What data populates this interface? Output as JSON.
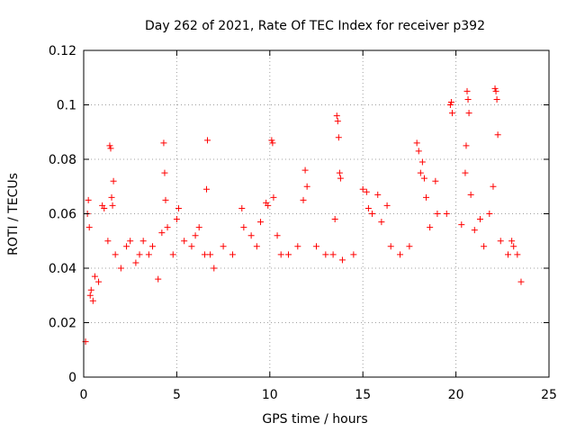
{
  "chart_data": {
    "type": "scatter",
    "title": "Day 262 of 2021, Rate Of TEC Index for receiver p392",
    "xlabel": "GPS time / hours",
    "ylabel": "ROTI / TECUs",
    "xlim": [
      0,
      25
    ],
    "ylim": [
      0,
      0.12
    ],
    "xticks": [
      "0",
      "5",
      "10",
      "15",
      "20",
      "25"
    ],
    "yticks": [
      "0",
      "0.02",
      "0.04",
      "0.06",
      "0.08",
      "0.1",
      "0.12"
    ],
    "grid": true,
    "marker": "plus",
    "color": "#ff0000",
    "series": [
      {
        "values": [
          [
            0.1,
            0.013
          ],
          [
            0.2,
            0.06
          ],
          [
            0.25,
            0.065
          ],
          [
            0.3,
            0.055
          ],
          [
            0.35,
            0.03
          ],
          [
            0.4,
            0.032
          ],
          [
            0.5,
            0.028
          ],
          [
            0.6,
            0.037
          ],
          [
            0.8,
            0.035
          ],
          [
            1.0,
            0.063
          ],
          [
            1.1,
            0.062
          ],
          [
            1.3,
            0.05
          ],
          [
            1.4,
            0.085
          ],
          [
            1.45,
            0.084
          ],
          [
            1.5,
            0.066
          ],
          [
            1.55,
            0.063
          ],
          [
            1.6,
            0.072
          ],
          [
            1.7,
            0.045
          ],
          [
            2.0,
            0.04
          ],
          [
            2.3,
            0.048
          ],
          [
            2.5,
            0.05
          ],
          [
            2.8,
            0.042
          ],
          [
            3.0,
            0.045
          ],
          [
            3.2,
            0.05
          ],
          [
            3.5,
            0.045
          ],
          [
            3.7,
            0.048
          ],
          [
            4.0,
            0.036
          ],
          [
            4.2,
            0.053
          ],
          [
            4.3,
            0.086
          ],
          [
            4.35,
            0.075
          ],
          [
            4.4,
            0.065
          ],
          [
            4.5,
            0.055
          ],
          [
            4.8,
            0.045
          ],
          [
            5.0,
            0.058
          ],
          [
            5.1,
            0.062
          ],
          [
            5.4,
            0.05
          ],
          [
            5.8,
            0.048
          ],
          [
            6.0,
            0.052
          ],
          [
            6.2,
            0.055
          ],
          [
            6.5,
            0.045
          ],
          [
            6.6,
            0.069
          ],
          [
            6.65,
            0.087
          ],
          [
            6.8,
            0.045
          ],
          [
            7.0,
            0.04
          ],
          [
            7.5,
            0.048
          ],
          [
            8.0,
            0.045
          ],
          [
            8.5,
            0.062
          ],
          [
            8.6,
            0.055
          ],
          [
            9.0,
            0.052
          ],
          [
            9.3,
            0.048
          ],
          [
            9.5,
            0.057
          ],
          [
            9.8,
            0.064
          ],
          [
            9.9,
            0.063
          ],
          [
            10.1,
            0.087
          ],
          [
            10.15,
            0.086
          ],
          [
            10.2,
            0.066
          ],
          [
            10.4,
            0.052
          ],
          [
            10.6,
            0.045
          ],
          [
            11.0,
            0.045
          ],
          [
            11.5,
            0.048
          ],
          [
            11.8,
            0.065
          ],
          [
            11.9,
            0.076
          ],
          [
            12.0,
            0.07
          ],
          [
            12.5,
            0.048
          ],
          [
            13.0,
            0.045
          ],
          [
            13.4,
            0.045
          ],
          [
            13.5,
            0.058
          ],
          [
            13.6,
            0.096
          ],
          [
            13.65,
            0.094
          ],
          [
            13.7,
            0.088
          ],
          [
            13.75,
            0.075
          ],
          [
            13.8,
            0.073
          ],
          [
            13.9,
            0.043
          ],
          [
            14.5,
            0.045
          ],
          [
            15.0,
            0.069
          ],
          [
            15.2,
            0.068
          ],
          [
            15.3,
            0.062
          ],
          [
            15.5,
            0.06
          ],
          [
            15.8,
            0.067
          ],
          [
            16.0,
            0.057
          ],
          [
            16.3,
            0.063
          ],
          [
            16.5,
            0.048
          ],
          [
            17.0,
            0.045
          ],
          [
            17.5,
            0.048
          ],
          [
            17.9,
            0.086
          ],
          [
            18.0,
            0.083
          ],
          [
            18.1,
            0.075
          ],
          [
            18.2,
            0.079
          ],
          [
            18.3,
            0.073
          ],
          [
            18.4,
            0.066
          ],
          [
            18.6,
            0.055
          ],
          [
            18.9,
            0.072
          ],
          [
            19.0,
            0.06
          ],
          [
            19.5,
            0.06
          ],
          [
            19.7,
            0.1
          ],
          [
            19.75,
            0.101
          ],
          [
            19.8,
            0.097
          ],
          [
            20.3,
            0.056
          ],
          [
            20.5,
            0.075
          ],
          [
            20.55,
            0.085
          ],
          [
            20.6,
            0.105
          ],
          [
            20.65,
            0.102
          ],
          [
            20.7,
            0.097
          ],
          [
            20.8,
            0.067
          ],
          [
            21.0,
            0.054
          ],
          [
            21.3,
            0.058
          ],
          [
            21.5,
            0.048
          ],
          [
            21.8,
            0.06
          ],
          [
            22.0,
            0.07
          ],
          [
            22.1,
            0.106
          ],
          [
            22.15,
            0.105
          ],
          [
            22.2,
            0.102
          ],
          [
            22.25,
            0.089
          ],
          [
            22.4,
            0.05
          ],
          [
            22.8,
            0.045
          ],
          [
            23.0,
            0.05
          ],
          [
            23.1,
            0.048
          ],
          [
            23.3,
            0.045
          ],
          [
            23.5,
            0.035
          ]
        ]
      }
    ]
  }
}
